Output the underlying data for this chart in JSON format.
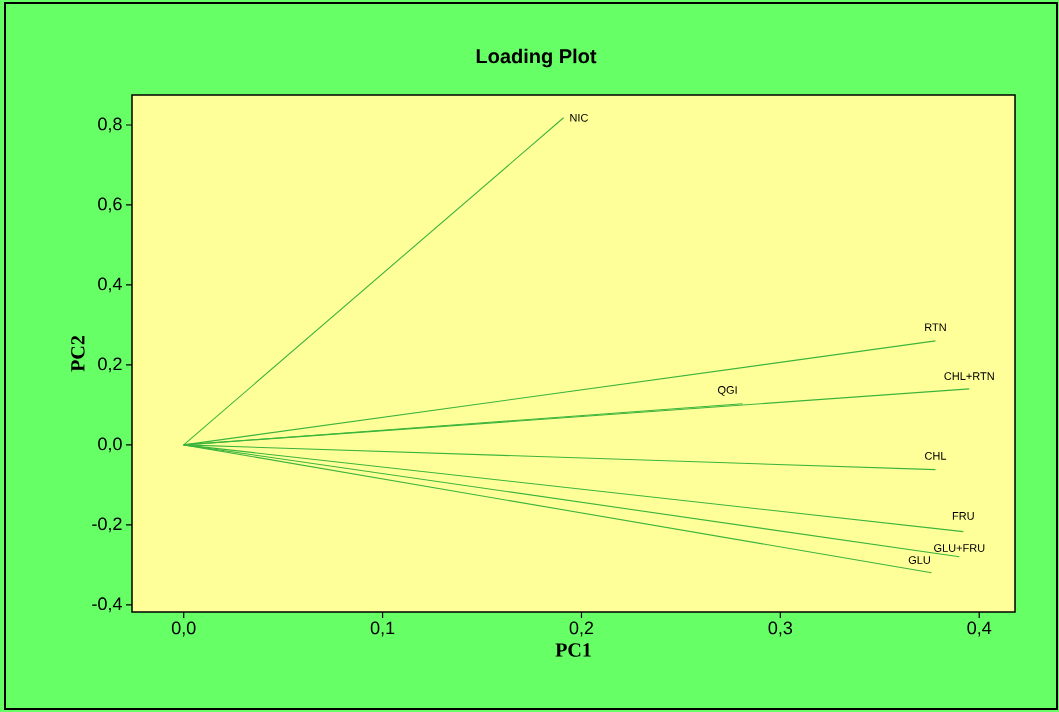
{
  "chart_data": {
    "type": "line",
    "title": "Loading Plot",
    "xlabel": "PC1",
    "ylabel": "PC2",
    "xlim": [
      -0.026,
      0.418
    ],
    "ylim": [
      -0.418,
      0.875
    ],
    "xticks": [
      {
        "value": 0,
        "label": "0,0"
      },
      {
        "value": 0.1,
        "label": "0,1"
      },
      {
        "value": 0.2,
        "label": "0,2"
      },
      {
        "value": 0.3,
        "label": "0,3"
      },
      {
        "value": 0.4,
        "label": "0,4"
      }
    ],
    "yticks": [
      {
        "value": -0.4,
        "label": "-0,4"
      },
      {
        "value": -0.2,
        "label": "-0,2"
      },
      {
        "value": 0,
        "label": "0,0"
      },
      {
        "value": 0.2,
        "label": "0,2"
      },
      {
        "value": 0.4,
        "label": "0,4"
      },
      {
        "value": 0.6,
        "label": "0,6"
      },
      {
        "value": 0.8,
        "label": "0,8"
      }
    ],
    "marker": "none",
    "line_style": "solid",
    "series": [
      {
        "name": "NIC",
        "color": "#3cb43c",
        "x": [
          0,
          0.191
        ],
        "values": [
          0,
          0.818
        ]
      },
      {
        "name": "RTN",
        "color": "#3cb43c",
        "x": [
          0,
          0.378
        ],
        "values": [
          0,
          0.26
        ]
      },
      {
        "name": "CHL+RTN",
        "color": "#3cb43c",
        "x": [
          0,
          0.395
        ],
        "values": [
          0,
          0.14
        ]
      },
      {
        "name": "QGI",
        "color": "#3cb43c",
        "x": [
          0,
          0.281
        ],
        "values": [
          0,
          0.103
        ]
      },
      {
        "name": "CHL",
        "color": "#3cb43c",
        "x": [
          0,
          0.378
        ],
        "values": [
          0,
          -0.062
        ]
      },
      {
        "name": "FRU",
        "color": "#3cb43c",
        "x": [
          0,
          0.392
        ],
        "values": [
          0,
          -0.217
        ]
      },
      {
        "name": "GLU+FRU",
        "color": "#3cb43c",
        "x": [
          0,
          0.39
        ],
        "values": [
          0,
          -0.28
        ]
      },
      {
        "name": "GLU",
        "color": "#3cb43c",
        "x": [
          0,
          0.376
        ],
        "values": [
          0,
          -0.32
        ]
      }
    ]
  }
}
